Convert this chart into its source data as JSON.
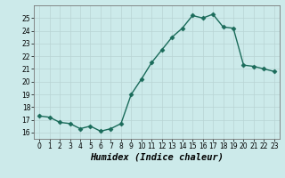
{
  "x": [
    0,
    1,
    2,
    3,
    4,
    5,
    6,
    7,
    8,
    9,
    10,
    11,
    12,
    13,
    14,
    15,
    16,
    17,
    18,
    19,
    20,
    21,
    22,
    23
  ],
  "y": [
    17.3,
    17.2,
    16.8,
    16.7,
    16.3,
    16.5,
    16.1,
    16.3,
    16.7,
    19.0,
    20.2,
    21.5,
    22.5,
    23.5,
    24.2,
    25.2,
    25.0,
    25.3,
    24.3,
    24.2,
    21.3,
    21.2,
    21.0,
    20.8
  ],
  "line_color": "#1a6b5a",
  "marker": "D",
  "marker_size": 2.5,
  "bg_color": "#cceaea",
  "grid_color": "#b8d4d4",
  "xlabel": "Humidex (Indice chaleur)",
  "ylim": [
    15.5,
    26.0
  ],
  "xlim": [
    -0.5,
    23.5
  ],
  "yticks": [
    16,
    17,
    18,
    19,
    20,
    21,
    22,
    23,
    24,
    25
  ],
  "xticks": [
    0,
    1,
    2,
    3,
    4,
    5,
    6,
    7,
    8,
    9,
    10,
    11,
    12,
    13,
    14,
    15,
    16,
    17,
    18,
    19,
    20,
    21,
    22,
    23
  ],
  "tick_fontsize": 5.5,
  "xlabel_fontsize": 7.5,
  "line_width": 1.0
}
